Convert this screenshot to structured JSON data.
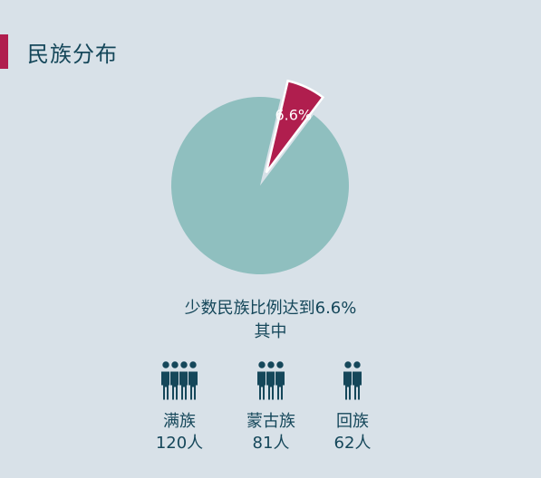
{
  "header": {
    "title": "民族分布"
  },
  "colors": {
    "accent": "#b01e4e",
    "majority": "#8fbfbf",
    "text": "#15475a",
    "background": "#d8e1e8"
  },
  "chart_data": {
    "type": "pie",
    "slices": [
      {
        "name": "",
        "value": 93.4,
        "color": "#8fbfbf"
      },
      {
        "name": "",
        "value": 6.6,
        "color": "#b01e4e",
        "label": "6.6%",
        "exploded": true
      }
    ]
  },
  "summary": {
    "line1": "少数民族比例达到6.6%",
    "line2": "其中"
  },
  "groups": [
    {
      "name": "满族",
      "count": "120人",
      "icon": "four-people-icon",
      "people": 4
    },
    {
      "name": "蒙古族",
      "count": "81人",
      "icon": "three-people-icon",
      "people": 3
    },
    {
      "name": "回族",
      "count": "62人",
      "icon": "two-people-icon",
      "people": 2
    }
  ]
}
